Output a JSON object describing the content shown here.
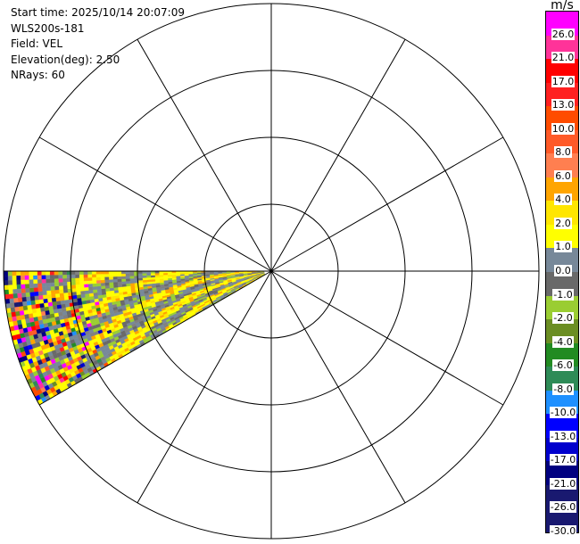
{
  "header": {
    "start_time": "Start time: 2025/10/14 20:07:09",
    "instrument": "WLS200s-181",
    "field": "Field: VEL",
    "elevation": "Elevation(deg): 2.50",
    "nrays": "NRays: 60"
  },
  "colorbar": {
    "unit": "m/s",
    "bins": [
      {
        "label": "26.0",
        "color": "#ff00ff"
      },
      {
        "label": "21.0",
        "color": "#ff3399"
      },
      {
        "label": "17.0",
        "color": "#ff0000"
      },
      {
        "label": "13.0",
        "color": "#ff2020"
      },
      {
        "label": "10.0",
        "color": "#ff4c00"
      },
      {
        "label": "8.0",
        "color": "#ff5a28"
      },
      {
        "label": "6.0",
        "color": "#ff7f50"
      },
      {
        "label": "4.0",
        "color": "#ffa500"
      },
      {
        "label": "2.0",
        "color": "#ffe600"
      },
      {
        "label": "1.0",
        "color": "#ffff00"
      },
      {
        "label": "0.0",
        "color": "#778899"
      },
      {
        "label": "-1.0",
        "color": "#696969"
      },
      {
        "label": "-2.0",
        "color": "#9acd32"
      },
      {
        "label": "-4.0",
        "color": "#6b8e23"
      },
      {
        "label": "-6.0",
        "color": "#228b22"
      },
      {
        "label": "-8.0",
        "color": "#2e8b57"
      },
      {
        "label": "-10.0",
        "color": "#1e90ff"
      },
      {
        "label": "-13.0",
        "color": "#0000ff"
      },
      {
        "label": "-17.0",
        "color": "#0000cd"
      },
      {
        "label": "-21.0",
        "color": "#000080"
      },
      {
        "label": "-26.0",
        "color": "#191970"
      },
      {
        "label": "-30.0",
        "color": "#191970"
      }
    ]
  },
  "chart_data": {
    "type": "heatmap",
    "projection": "polar PPI",
    "field": "VEL",
    "units": "m/s",
    "elevation_deg": 2.5,
    "nrays": 60,
    "range_rings": 4,
    "spokes_deg": [
      0,
      30,
      60,
      90,
      120,
      150,
      180,
      210,
      240,
      270,
      300,
      330
    ],
    "sector": {
      "azimuth_from_deg": 240,
      "azimuth_to_deg": 270,
      "dominant_values": [
        "1.0 to 4.0",
        "-1.0 to 0.0"
      ],
      "far_range_values": "mixed, -30.0 to 26.0"
    },
    "grid": true,
    "legend": "right"
  }
}
